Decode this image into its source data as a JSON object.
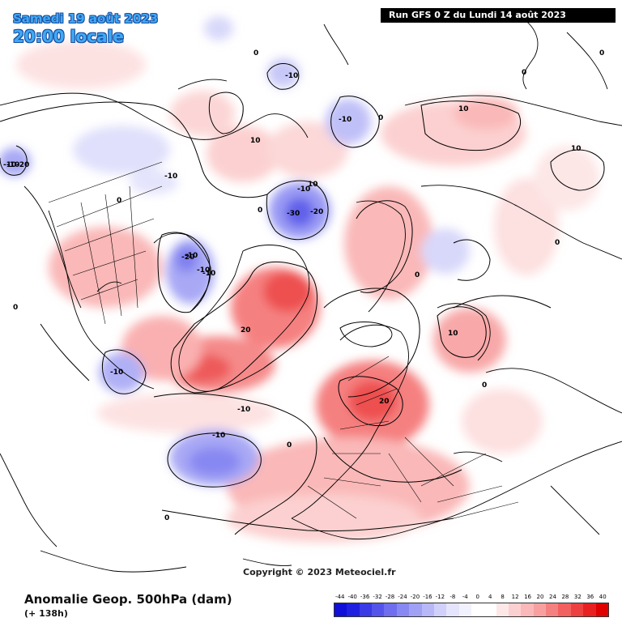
{
  "header": {
    "valid_date": "Samedi 19 août 2023",
    "local_time": "20:00 locale",
    "run_info": "Run GFS 0 Z du Lundi 14 août 2023"
  },
  "footer": {
    "title": "Anomalie Geop. 500hPa (dam)",
    "lead_time": "(+ 138h)",
    "copyright": "Copyright © 2023 Meteociel.fr"
  },
  "legend": {
    "labels": [
      "-44",
      "-40",
      "-36",
      "-32",
      "-28",
      "-24",
      "-20",
      "-16",
      "-12",
      "-8",
      "-4",
      "0",
      "4",
      "8",
      "12",
      "16",
      "20",
      "24",
      "28",
      "32",
      "36",
      "40"
    ],
    "colors": [
      "#1010d8",
      "#2020e0",
      "#3a3ae6",
      "#5454ea",
      "#6e6eee",
      "#8888f2",
      "#a0a0f5",
      "#b8b8f8",
      "#d0d0fa",
      "#e4e4fc",
      "#f2f2fe",
      "#ffffff",
      "#ffffff",
      "#fde8e8",
      "#fcd0d0",
      "#fab8b8",
      "#f8a0a0",
      "#f58080",
      "#f26060",
      "#ee4040",
      "#e82020",
      "#e00000"
    ]
  },
  "colors": {
    "positive_anomaly": "#f08080",
    "negative_anomaly": "#8888f2",
    "title_accent": "#3fa9f5"
  },
  "map": {
    "contour_labels": [
      {
        "text": "0"
      },
      {
        "text": "0"
      },
      {
        "text": "0"
      },
      {
        "text": "0"
      },
      {
        "text": "0"
      },
      {
        "text": "0"
      },
      {
        "text": "0"
      },
      {
        "text": "0"
      },
      {
        "text": "0"
      },
      {
        "text": "0"
      },
      {
        "text": "0"
      },
      {
        "text": "0"
      },
      {
        "text": "-10"
      },
      {
        "text": "-10"
      },
      {
        "text": "-10"
      },
      {
        "text": "-10"
      },
      {
        "text": "-10"
      },
      {
        "text": "-10"
      },
      {
        "text": "-10"
      },
      {
        "text": "-10"
      },
      {
        "text": "-20"
      },
      {
        "text": "-20"
      },
      {
        "text": "-20"
      },
      {
        "text": "-30"
      },
      {
        "text": "-10"
      },
      {
        "text": "10"
      },
      {
        "text": "10"
      },
      {
        "text": "10"
      },
      {
        "text": "10"
      },
      {
        "text": "10"
      },
      {
        "text": "20"
      },
      {
        "text": "20"
      },
      {
        "text": "-10"
      },
      {
        "text": "-10"
      },
      {
        "text": "-10"
      }
    ]
  }
}
